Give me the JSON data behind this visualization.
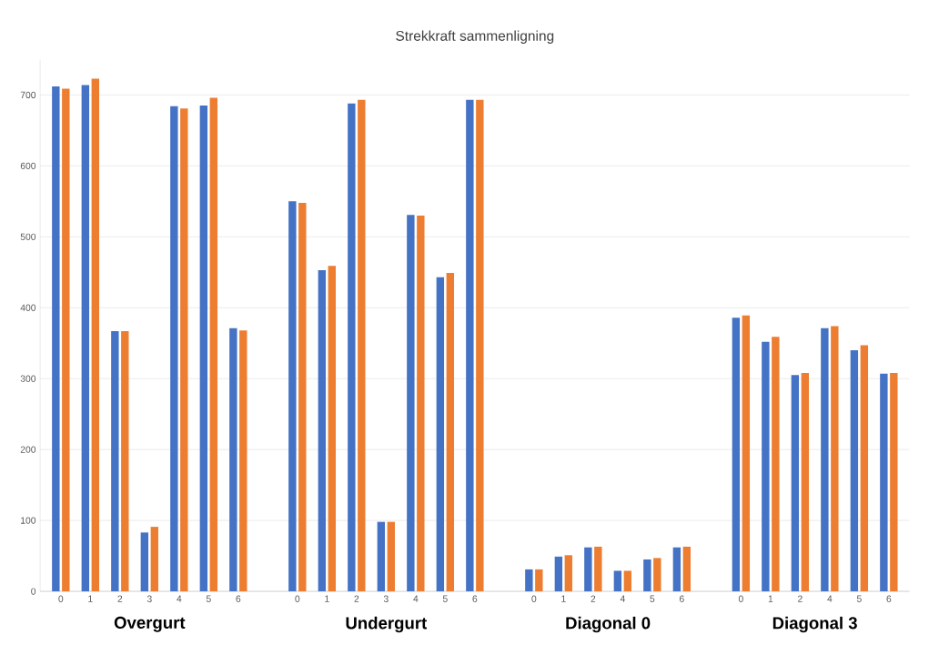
{
  "chart_data": {
    "type": "bar",
    "title": "Strekkraft sammenligning",
    "categories": [
      "0",
      "1",
      "2",
      "3",
      "4",
      "5",
      "6",
      null,
      "0",
      "1",
      "2",
      "3",
      "4",
      "5",
      "6",
      null,
      "0",
      "1",
      "2",
      "4",
      "5",
      "6",
      null,
      "0",
      "1",
      "2",
      "4",
      "5",
      "6"
    ],
    "series": [
      {
        "color": "#4472c4",
        "values": [
          712,
          714,
          367,
          83,
          684,
          685,
          371,
          null,
          550,
          453,
          688,
          98,
          531,
          443,
          693,
          null,
          31,
          49,
          62,
          29,
          45,
          62,
          null,
          386,
          352,
          305,
          371,
          340,
          307
        ]
      },
      {
        "color": "#ed7d31",
        "values": [
          709,
          723,
          367,
          91,
          681,
          696,
          368,
          null,
          548,
          459,
          693,
          98,
          530,
          449,
          693,
          null,
          31,
          51,
          63,
          29,
          47,
          63,
          null,
          389,
          359,
          308,
          374,
          347,
          308
        ]
      }
    ],
    "ylim": [
      0,
      750
    ],
    "yticks": [
      0,
      100,
      200,
      300,
      400,
      500,
      600,
      700
    ],
    "grid": "y",
    "annotations": [
      "Overgurt",
      "Undergurt",
      "Diagonal 0",
      "Diagonal 3"
    ]
  }
}
